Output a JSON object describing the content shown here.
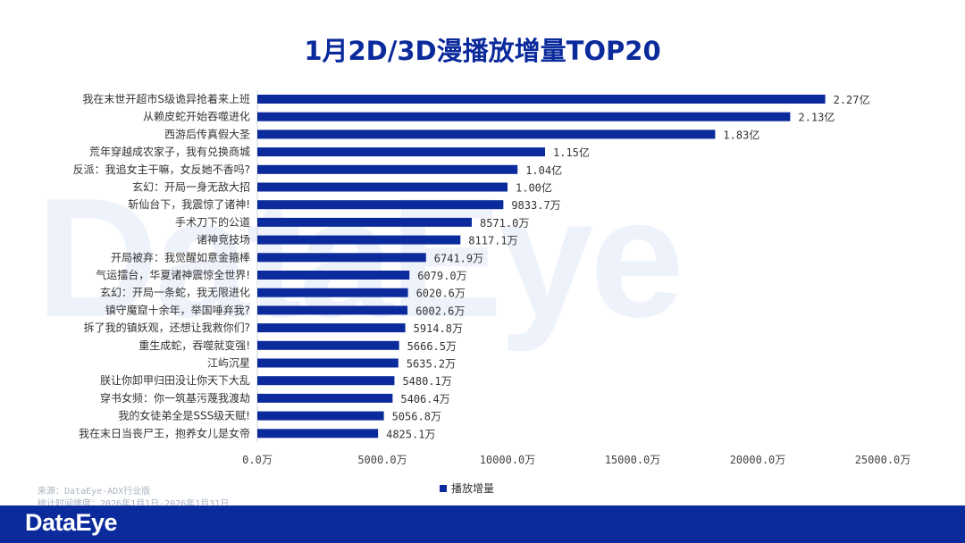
{
  "title": "1月2D/3D漫播放增量TOP20",
  "watermark": "DataEye",
  "source": {
    "line1": "来源：DataEye-ADX行业版",
    "line2": "统计时间维度：2026年1月1日-2026年1月31日"
  },
  "footer": {
    "logo": "DataEye"
  },
  "colors": {
    "bar": "#0b2a9c",
    "footer": "#0b2a9c"
  },
  "chart_data": {
    "type": "bar",
    "orientation": "horizontal",
    "title": "1月2D/3D漫播放增量TOP20",
    "xlabel": "",
    "ylabel": "",
    "xlim": [
      0,
      25000
    ],
    "x_ticks": [
      "0.0万",
      "5000.0万",
      "10000.0万",
      "15000.0万",
      "20000.0万",
      "25000.0万"
    ],
    "grid": false,
    "legend_position": "bottom",
    "categories": [
      "我在末世开超市S级诡异抢着来上班",
      "从赖皮蛇开始吞噬进化",
      "西游后传真假大圣",
      "荒年穿越成农家子，我有兑换商城",
      "反派：我追女主干嘛，女反她不香吗?",
      "玄幻：开局一身无敌大招",
      "斩仙台下，我震惊了诸神!",
      "手术刀下的公道",
      "诸神竞技场",
      "开局被弃：我觉醒如意金箍棒",
      "气运擂台，华夏诸神震惊全世界!",
      "玄幻：开局一条蛇，我无限进化",
      "镇守魔窟十余年，举国唾弃我?",
      "拆了我的镇妖观，还想让我救你们?",
      "重生成蛇，吞噬就变强!",
      "江屿沉星",
      "朕让你卸甲归田没让你天下大乱",
      "穿书女频：你一筑基污蔑我渡劫",
      "我的女徒弟全是SSS级天赋!",
      "我在末日当丧尸王，抱养女儿是女帝"
    ],
    "series": [
      {
        "name": "播放增量",
        "values": [
          22700,
          21300,
          18300,
          11500,
          10400,
          10000,
          9833.7,
          8571.0,
          8117.1,
          6741.9,
          6079.0,
          6020.6,
          6002.6,
          5914.8,
          5666.5,
          5635.2,
          5480.1,
          5406.4,
          5056.8,
          4825.1
        ],
        "labels": [
          "2.27亿",
          "2.13亿",
          "1.83亿",
          "1.15亿",
          "1.04亿",
          "1.00亿",
          "9833.7万",
          "8571.0万",
          "8117.1万",
          "6741.9万",
          "6079.0万",
          "6020.6万",
          "6002.6万",
          "5914.8万",
          "5666.5万",
          "5635.2万",
          "5480.1万",
          "5406.4万",
          "5056.8万",
          "4825.1万"
        ]
      }
    ]
  }
}
